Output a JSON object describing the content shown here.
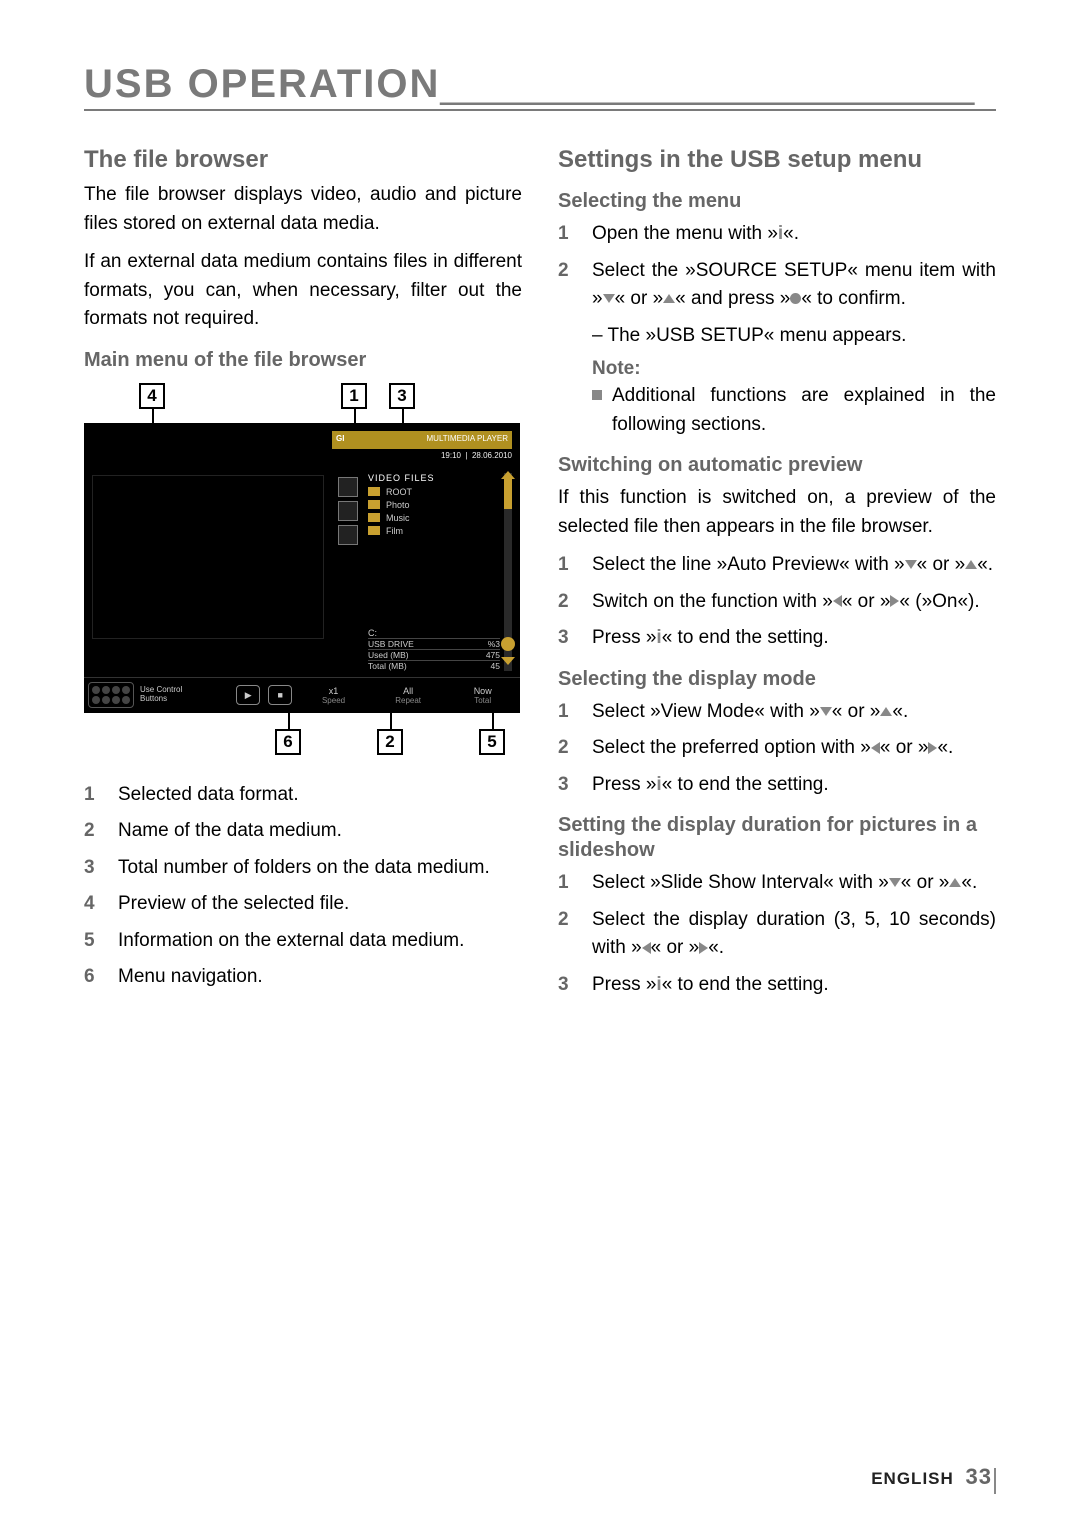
{
  "chapter_title": "USB OPERATION",
  "left": {
    "h2": "The file browser",
    "p1": "The file browser displays video, audio and picture files stored on external data media.",
    "p2": "If an external data medium contains files in different formats, you can, when necessary, filter out the formats not required.",
    "h3": "Main menu of the file browser",
    "legend": [
      "Selected data format.",
      "Name of the data medium.",
      "Total number of folders on the data medium.",
      "Preview of the selected file.",
      "Information on the external data medium.",
      "Menu navigation."
    ],
    "mock": {
      "brand": "GRUNDIG",
      "player": "MULTIMEDIA PLAYER",
      "time": "19:10",
      "date": "28.06.2010",
      "header": "VIDEO FILES",
      "folders": [
        "ROOT",
        "Photo",
        "Music",
        "Film"
      ],
      "drive_label": "C:",
      "drive_rows": [
        [
          "USB DRIVE",
          "%3"
        ],
        [
          "Used (MB)",
          "475"
        ],
        [
          "Total (MB)",
          "45"
        ]
      ],
      "bottom_left": "Use Control\nButtons",
      "bottom_cells": [
        {
          "v": "x1",
          "l": "Speed"
        },
        {
          "v": "All",
          "l": "Repeat"
        },
        {
          "v": "Now",
          "l": "Total"
        }
      ],
      "callouts_top": {
        "1": 270,
        "3": 318,
        "4": 68
      },
      "callouts_bottom": {
        "2": 306,
        "5": 408,
        "6": 204
      }
    }
  },
  "right": {
    "h2": "Settings in the USB setup menu",
    "sec1": {
      "title": "Selecting the menu",
      "steps": [
        {
          "pre": "Open the menu with »",
          "key": "i",
          "post": "«."
        },
        {
          "pre": " Select the »SOURCE SETUP« menu item with »",
          "down": true,
          "mid1": "« or »",
          "up": true,
          "mid2": "« and press »",
          "dot": true,
          "post": "« to confirm."
        }
      ],
      "sub": "– The »USB SETUP« menu appears.",
      "note_title": "Note:",
      "note_body": "Additional functions are explained in the following sections."
    },
    "sec2": {
      "title": "Switching on automatic preview",
      "intro": "If this function is switched on, a preview of the selected file then appears in the file browser.",
      "steps": [
        {
          "pre": "Select the line »Auto Preview« with »",
          "down": true,
          "mid1": "« or »",
          "up": true,
          "post": "«."
        },
        {
          "pre": "Switch on the function with »",
          "left": true,
          "mid1": "« or »",
          "right": true,
          "post": "« (»On«)."
        },
        {
          "pre": "Press »",
          "key": "i",
          "post": "« to end the setting."
        }
      ]
    },
    "sec3": {
      "title": "Selecting the display mode",
      "steps": [
        {
          "pre": "Select »View Mode« with »",
          "down": true,
          "mid1": "« or »",
          "up": true,
          "post": "«."
        },
        {
          "pre": "Select the preferred option with »",
          "left": true,
          "mid1": "« or »",
          "right": true,
          "post": "«."
        },
        {
          "pre": "Press »",
          "key": "i",
          "post": "« to end the setting."
        }
      ]
    },
    "sec4": {
      "title": "Setting the display duration for pictures in a slideshow",
      "steps": [
        {
          "pre": "Select »Slide Show Interval« with »",
          "down": true,
          "mid1": "« or »",
          "up": true,
          "post": "«."
        },
        {
          "pre": "Select the display duration (3, 5, 10 seconds) with »",
          "left": true,
          "mid1": "« or »",
          "right": true,
          "post": "«."
        },
        {
          "pre": "Press »",
          "key": "i",
          "post": "« to end the setting."
        }
      ]
    }
  },
  "footer": {
    "lang": "ENGLISH",
    "page": "33"
  }
}
